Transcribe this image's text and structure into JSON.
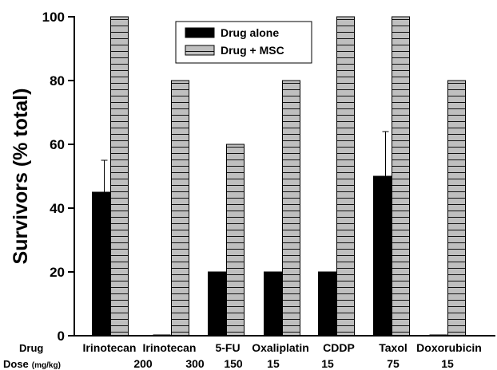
{
  "chart_data": {
    "type": "bar",
    "title": "",
    "xlabel": "",
    "ylabel": "Survivors (% total)",
    "ylim": [
      0,
      100
    ],
    "yticks": [
      0,
      20,
      40,
      60,
      80,
      100
    ],
    "grid": false,
    "legend_position": "top-center",
    "row_labels": {
      "drug": "Drug",
      "dose": "Dose",
      "dose_unit": "(mg/kg)"
    },
    "categories": [
      "Irinotecan",
      "Irinotecan",
      "5-FU",
      "Oxaliplatin",
      "CDDP",
      "Taxol",
      "Doxorubicin"
    ],
    "doses": [
      "200",
      "300",
      "150",
      "15",
      "15",
      "75",
      "15"
    ],
    "series": [
      {
        "name": "Drug alone",
        "color": "#000000",
        "values": [
          45,
          0,
          20,
          20,
          20,
          50,
          0
        ],
        "error": [
          10,
          0,
          0,
          0,
          0,
          14,
          0
        ]
      },
      {
        "name": "Drug + MSC",
        "color": "#bfbfbf",
        "values": [
          100,
          80,
          60,
          80,
          100,
          100,
          80
        ]
      }
    ]
  }
}
